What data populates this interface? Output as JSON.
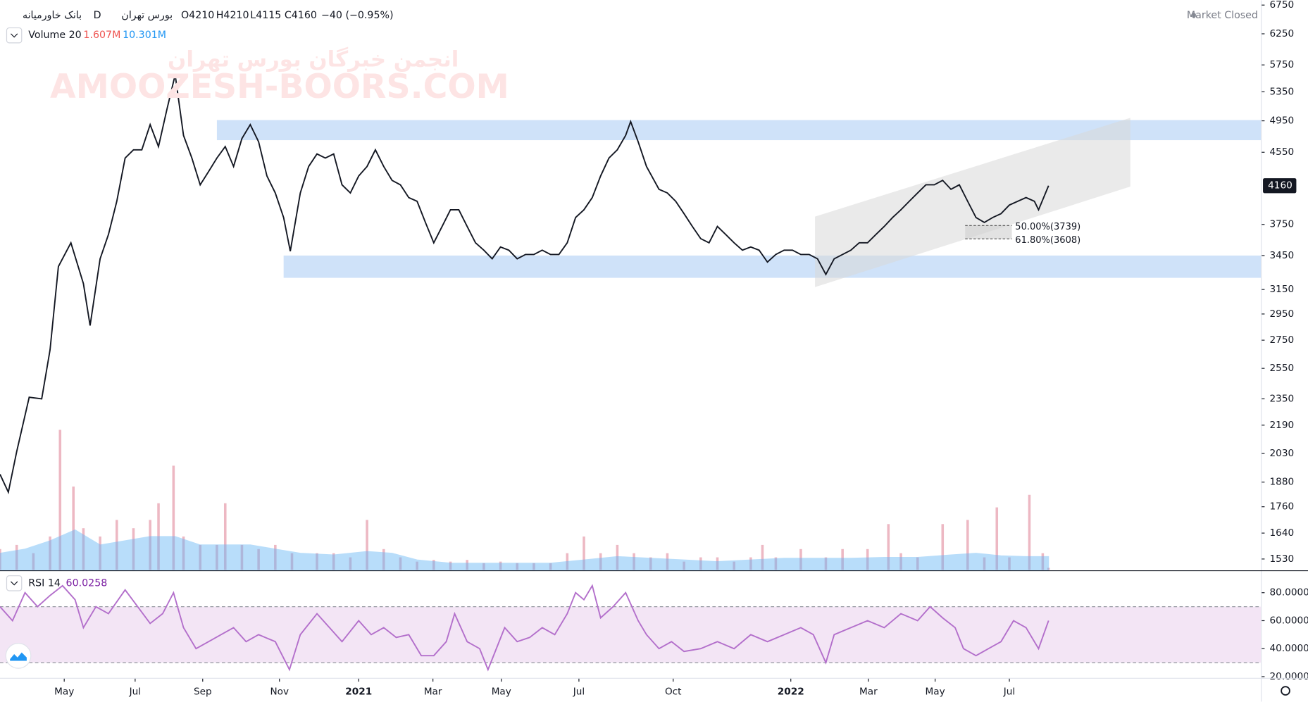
{
  "chart_data": [
    {
      "type": "line",
      "title": "بانک خاورمیانه",
      "interval": "D",
      "exchange": "بورس تهران",
      "ohlc": [
        "O4210",
        "H4210",
        "L4115",
        "C4160"
      ],
      "change": "−40 (−0.95%)",
      "status": "Market Closed",
      "watermark": [
        "انجمن خبرگان بورس تهران",
        "AMOOZESH-BOORS.COM"
      ],
      "color": "#131722",
      "log_scale": true,
      "last_price": 4160,
      "xlim": [
        0,
        151.2
      ],
      "xticks": [
        {
          "value": 7.7,
          "label": "May"
        },
        {
          "value": 16.2,
          "label": "Jul"
        },
        {
          "value": 24.3,
          "label": "Sep"
        },
        {
          "value": 33.5,
          "label": "Nov"
        },
        {
          "value": 43,
          "label": "2021"
        },
        {
          "value": 51.9,
          "label": "Mar"
        },
        {
          "value": 60.1,
          "label": "May"
        },
        {
          "value": 69.4,
          "label": "Jul"
        },
        {
          "value": 80.7,
          "label": "Oct"
        },
        {
          "value": 94.8,
          "label": "2022"
        },
        {
          "value": 104.1,
          "label": "Mar"
        },
        {
          "value": 112.1,
          "label": "May"
        },
        {
          "value": 121,
          "label": "Jul"
        }
      ],
      "ylim": [
        1486,
        6836
      ],
      "yticks": [
        6750,
        6250,
        5750,
        5350,
        4950,
        4550,
        3750,
        3450,
        3150,
        2950,
        2750,
        2550,
        2350,
        2190,
        2030,
        1880,
        1760,
        1640,
        1530
      ],
      "x": [
        0,
        1,
        2,
        3.5,
        5,
        6,
        7,
        8.5,
        10,
        10.8,
        12,
        13,
        14,
        15,
        16,
        17,
        18,
        19,
        20,
        21,
        22,
        23,
        24,
        25,
        26,
        27,
        28,
        29,
        30,
        31,
        32,
        33,
        34,
        34.8,
        36,
        37,
        38,
        39,
        40,
        41,
        42,
        43,
        44,
        45,
        46,
        47,
        48,
        49,
        50,
        51,
        52,
        53,
        54,
        55,
        56,
        57,
        58,
        59,
        60,
        61,
        62,
        63,
        64,
        65,
        66,
        67,
        68,
        69,
        70,
        71,
        72,
        73,
        74,
        75,
        75.6,
        76.5,
        77.5,
        79,
        80,
        81,
        82,
        83,
        84,
        85,
        86,
        87,
        88,
        89,
        90,
        91,
        92,
        93,
        94,
        95,
        96,
        97,
        98,
        99,
        100,
        101,
        102,
        103,
        104,
        105,
        106,
        107,
        108,
        109,
        110,
        111,
        112,
        113,
        114,
        115,
        116,
        117,
        118,
        119,
        120,
        121,
        122,
        123,
        124,
        124.5,
        125.7
      ],
      "values": [
        1920,
        1830,
        2040,
        2360,
        2350,
        2680,
        3350,
        3570,
        3200,
        2860,
        3420,
        3650,
        3990,
        4480,
        4580,
        4580,
        4900,
        4620,
        5100,
        5600,
        4760,
        4480,
        4170,
        4320,
        4480,
        4620,
        4380,
        4720,
        4900,
        4680,
        4270,
        4080,
        3820,
        3490,
        4080,
        4380,
        4530,
        4480,
        4530,
        4170,
        4080,
        4270,
        4380,
        4580,
        4380,
        4220,
        4170,
        4030,
        3990,
        3770,
        3570,
        3730,
        3900,
        3900,
        3730,
        3570,
        3500,
        3420,
        3530,
        3500,
        3420,
        3460,
        3460,
        3500,
        3460,
        3460,
        3570,
        3820,
        3900,
        4030,
        4270,
        4480,
        4580,
        4760,
        4940,
        4680,
        4380,
        4120,
        4080,
        3990,
        3860,
        3730,
        3610,
        3570,
        3730,
        3650,
        3570,
        3500,
        3530,
        3500,
        3390,
        3460,
        3500,
        3500,
        3460,
        3460,
        3420,
        3280,
        3420,
        3460,
        3500,
        3570,
        3570,
        3650,
        3730,
        3820,
        3900,
        3990,
        4080,
        4170,
        4170,
        4220,
        4120,
        4170,
        3990,
        3820,
        3770,
        3820,
        3860,
        3950,
        3990,
        4030,
        3990,
        3900,
        4160
      ],
      "zones": [
        {
          "x": [
            26,
            151.2
          ],
          "price": [
            4700,
            4960
          ]
        },
        {
          "x": [
            34,
            151.2
          ],
          "price": [
            3250,
            3450
          ]
        }
      ],
      "channel": {
        "x": [
          97.7,
          135.5
        ],
        "lower": [
          3170,
          4150
        ],
        "upper": [
          3830,
          4990
        ]
      },
      "fib": [
        {
          "label": "50.00%(3739)",
          "price": 3739
        },
        {
          "label": "61.80%(3608)",
          "price": 3608
        }
      ],
      "fib_x": [
        115.7,
        121.3
      ]
    },
    {
      "type": "bar",
      "title": "Volume 20",
      "value_label": "1.607M",
      "ma_label": "10.301M",
      "color": "#e8a6b4",
      "ma_color": "#64b5f6",
      "ylim": [
        0,
        440
      ],
      "x": [
        0,
        2,
        4,
        6,
        7.2,
        8.8,
        10,
        12,
        14,
        16,
        18,
        19,
        20.8,
        22,
        24,
        26,
        27,
        29,
        31,
        33,
        35,
        38,
        40,
        42,
        44,
        46,
        48,
        50,
        52,
        54,
        56,
        58,
        60,
        62,
        64,
        66,
        68,
        70,
        72,
        74,
        76,
        78,
        80,
        82,
        84,
        86,
        88,
        90,
        91.4,
        93,
        96,
        99,
        101,
        104,
        106.5,
        108,
        110,
        113,
        116,
        118,
        119.5,
        121,
        123.4,
        125,
        125.7
      ],
      "values": [
        16.1,
        19.3,
        12.9,
        25.8,
        108.2,
        64.4,
        32.2,
        25.8,
        38.6,
        32.2,
        38.6,
        51.5,
        80.5,
        25.8,
        19.3,
        19.3,
        51.5,
        19.3,
        16.1,
        19.3,
        12.9,
        12.9,
        12.9,
        9.7,
        38.6,
        16.1,
        9.7,
        6.4,
        7.7,
        6.4,
        7.7,
        5.2,
        6.4,
        5.2,
        5.2,
        5.2,
        12.9,
        25.8,
        12.9,
        19.3,
        12.9,
        9.7,
        12.9,
        6.4,
        9.7,
        9.7,
        6.4,
        9.7,
        19.3,
        9.7,
        16.1,
        9.7,
        16.1,
        16.1,
        35.4,
        12.9,
        9.7,
        35.4,
        38.6,
        9.7,
        48.3,
        9.7,
        58,
        12.9,
        1.607
      ],
      "ma_x": [
        0,
        3,
        6,
        9,
        12,
        15,
        18,
        21,
        24,
        27,
        30,
        33,
        36,
        40,
        44,
        47,
        50,
        54,
        58,
        62,
        66,
        70,
        74,
        78,
        82,
        86,
        90,
        94,
        98,
        102,
        106,
        110,
        114,
        117,
        120,
        123,
        125.7
      ],
      "ma_values": [
        12.9,
        16.1,
        22.5,
        30.9,
        19.3,
        22.5,
        25.8,
        25.8,
        19.3,
        19.3,
        19.3,
        16.1,
        12.9,
        11.6,
        14.2,
        12.9,
        7.7,
        5.2,
        5.2,
        5.2,
        5.2,
        7.7,
        10.3,
        9,
        7.7,
        6.4,
        7.7,
        9,
        9,
        9,
        9.7,
        9.7,
        11.6,
        12.9,
        10.9,
        10.3,
        10.301
      ]
    },
    {
      "type": "line",
      "title": "RSI 14",
      "value_label": "60.0258",
      "color": "#b36fcb",
      "band": [
        30,
        70
      ],
      "band_color": "#f3e5f5",
      "ylim": [
        19.4,
        94.5
      ],
      "yticks": [
        {
          "value": 80,
          "label": "80.0000"
        },
        {
          "value": 60,
          "label": "60.0000"
        },
        {
          "value": 40,
          "label": "40.0000"
        },
        {
          "value": 20,
          "label": "20.0000"
        }
      ],
      "x": [
        0,
        1.5,
        3,
        4.5,
        6,
        7.5,
        9,
        10,
        11.5,
        13,
        15,
        16.5,
        18,
        19.5,
        20.8,
        22,
        23.5,
        25,
        26.5,
        28,
        29.5,
        31,
        33,
        34.7,
        36,
        38,
        39.5,
        41,
        43,
        44.5,
        46,
        47.5,
        49,
        50.5,
        52,
        53.5,
        54.5,
        56,
        57.5,
        58.5,
        59.5,
        60.5,
        62,
        63.5,
        65,
        66.5,
        68,
        69,
        70,
        71,
        72,
        73.5,
        75,
        76.5,
        77.5,
        79,
        80.5,
        82,
        84,
        86,
        88,
        90,
        92,
        94,
        96,
        97.5,
        99,
        100,
        102,
        104,
        106,
        108,
        110,
        111.5,
        113,
        114.5,
        115.5,
        117,
        118.5,
        120,
        121.5,
        123,
        124.5,
        125.7
      ],
      "values": [
        70,
        60,
        80,
        70,
        78,
        85,
        75,
        55,
        70,
        65,
        82,
        70,
        58,
        65,
        80,
        55,
        40,
        45,
        50,
        55,
        45,
        50,
        45,
        25,
        50,
        65,
        55,
        45,
        60,
        50,
        55,
        48,
        50,
        35,
        35,
        45,
        65,
        45,
        40,
        25,
        40,
        55,
        45,
        48,
        55,
        50,
        65,
        80,
        75,
        85,
        62,
        70,
        80,
        60,
        50,
        40,
        45,
        38,
        40,
        45,
        40,
        50,
        45,
        50,
        55,
        50,
        30,
        50,
        55,
        60,
        55,
        65,
        60,
        70,
        62,
        55,
        40,
        35,
        40,
        45,
        60,
        55,
        40,
        60.0258
      ]
    }
  ]
}
